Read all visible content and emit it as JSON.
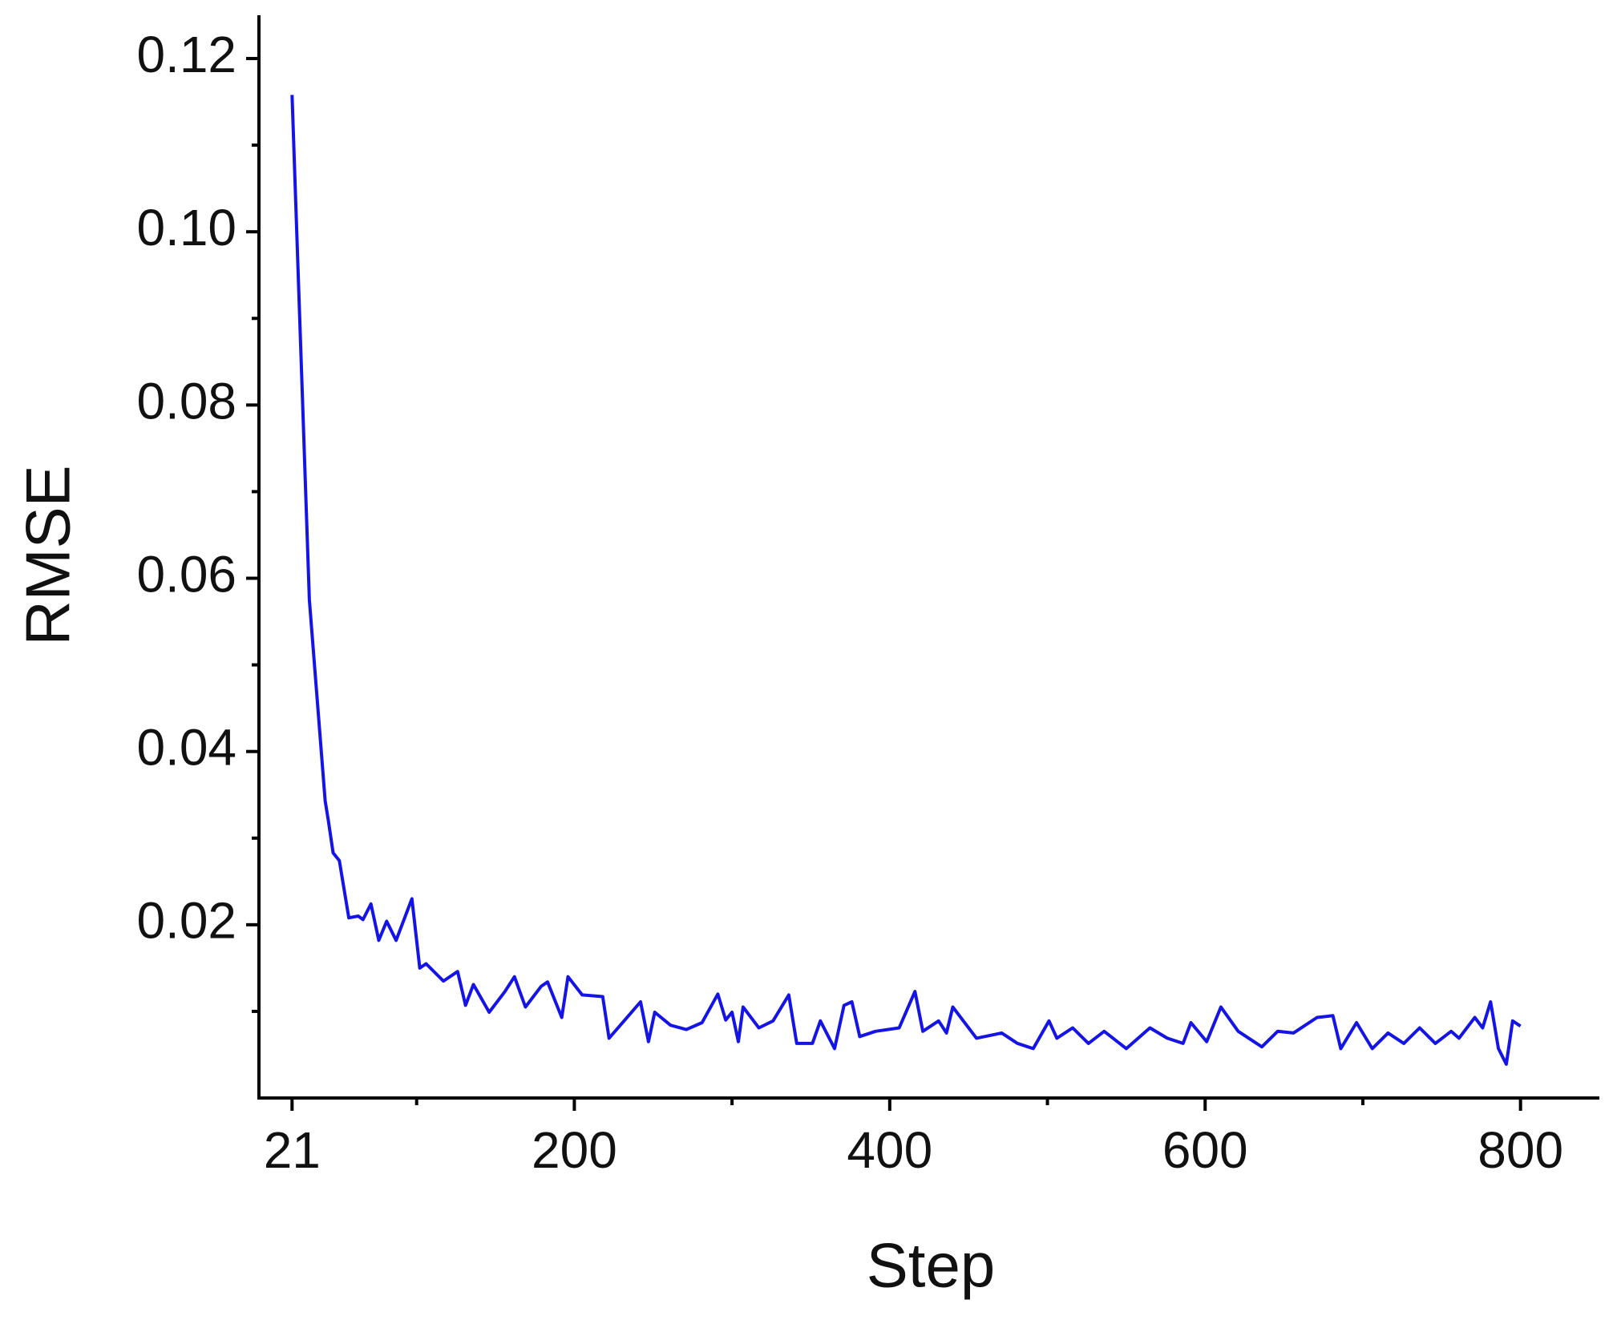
{
  "chart_data": {
    "type": "line",
    "x_label": "Step",
    "y_label": "RMSE",
    "x": [
      21,
      32,
      42,
      44,
      47,
      51,
      57,
      63,
      66,
      71,
      76,
      81,
      87,
      97,
      102,
      106,
      117,
      126,
      131,
      136,
      146,
      156,
      162,
      169,
      179,
      183,
      192,
      196,
      205,
      218,
      222,
      232,
      242,
      247,
      251,
      261,
      271,
      281,
      291,
      296,
      300,
      304,
      307,
      317,
      326,
      336,
      341,
      351,
      356,
      365,
      371,
      376,
      381,
      391,
      406,
      416,
      421,
      431,
      436,
      440,
      455,
      471,
      481,
      491,
      501,
      506,
      516,
      526,
      536,
      550,
      565,
      576,
      586,
      591,
      601,
      610,
      621,
      636,
      646,
      656,
      671,
      681,
      686,
      696,
      706,
      716,
      726,
      736,
      746,
      756,
      761,
      771,
      776,
      781,
      786,
      791,
      795,
      800
    ],
    "series": [
      {
        "name": "RMSE",
        "color": "#1414e6",
        "values": [
          0.1158,
          0.0575,
          0.0343,
          0.032,
          0.0283,
          0.0274,
          0.0208,
          0.021,
          0.0206,
          0.0224,
          0.0182,
          0.0204,
          0.0182,
          0.023,
          0.015,
          0.0155,
          0.0135,
          0.0146,
          0.0107,
          0.0131,
          0.0099,
          0.0123,
          0.014,
          0.0105,
          0.0129,
          0.0134,
          0.0093,
          0.014,
          0.0119,
          0.0117,
          0.0069,
          0.009,
          0.0111,
          0.0065,
          0.0099,
          0.0084,
          0.0079,
          0.0087,
          0.012,
          0.009,
          0.0099,
          0.0065,
          0.0105,
          0.0081,
          0.0089,
          0.0119,
          0.0063,
          0.0063,
          0.0089,
          0.0057,
          0.0107,
          0.0111,
          0.0071,
          0.0077,
          0.0081,
          0.0123,
          0.0077,
          0.0089,
          0.0075,
          0.0105,
          0.0069,
          0.0075,
          0.0063,
          0.0057,
          0.0089,
          0.0069,
          0.0081,
          0.0063,
          0.0077,
          0.0057,
          0.0081,
          0.0069,
          0.0063,
          0.0087,
          0.0065,
          0.0105,
          0.0077,
          0.0059,
          0.0077,
          0.0075,
          0.0093,
          0.0095,
          0.0057,
          0.0087,
          0.0057,
          0.0075,
          0.0063,
          0.0081,
          0.0063,
          0.0077,
          0.0069,
          0.0093,
          0.0081,
          0.0111,
          0.0057,
          0.0039,
          0.0089,
          0.0083
        ]
      }
    ],
    "xlim": [
      0,
      850
    ],
    "xticks": [
      21,
      200,
      400,
      600,
      800
    ],
    "xminorticks": [
      100,
      300,
      500,
      700
    ],
    "ylim": [
      0,
      0.125
    ],
    "yticks": [
      0.02,
      0.04,
      0.06,
      0.08,
      {
        "value": 0.1,
        "label": "0.10"
      },
      0.12
    ],
    "yminorticks": [
      0.01,
      0.03,
      0.05,
      0.07,
      0.09,
      0.11
    ]
  }
}
